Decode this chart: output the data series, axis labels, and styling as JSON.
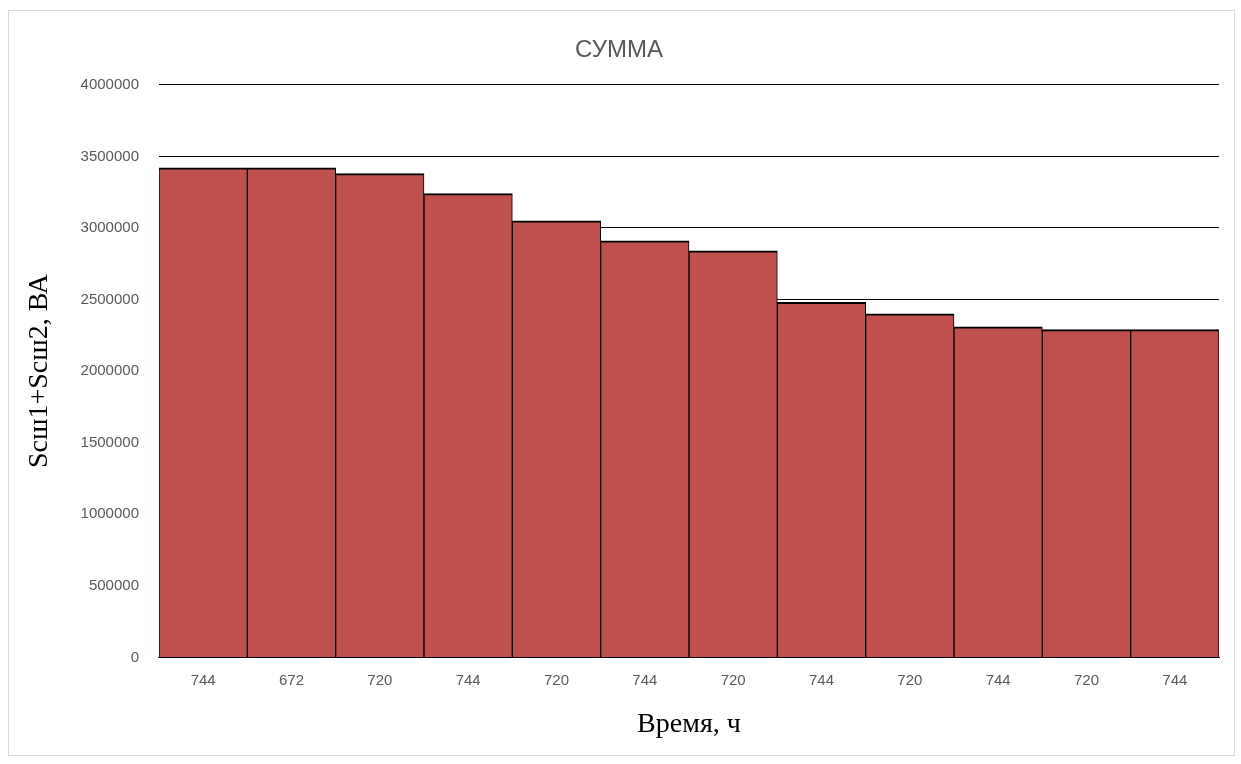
{
  "chart_data": {
    "type": "bar",
    "title": "СУММА",
    "xlabel": "Время, ч",
    "ylabel": "Scш1+Scш2, ВА",
    "categories": [
      "744",
      "672",
      "720",
      "744",
      "720",
      "744",
      "720",
      "744",
      "720",
      "744",
      "720",
      "744"
    ],
    "values": [
      3420000,
      3420000,
      3380000,
      3240000,
      3050000,
      2910000,
      2840000,
      2480000,
      2400000,
      2310000,
      2290000,
      2290000
    ],
    "color": "#c0504d",
    "ylim": [
      0,
      4000000
    ],
    "yticks": [
      0,
      500000,
      1000000,
      1500000,
      2000000,
      2500000,
      3000000,
      3500000,
      4000000
    ],
    "grid": "y"
  }
}
